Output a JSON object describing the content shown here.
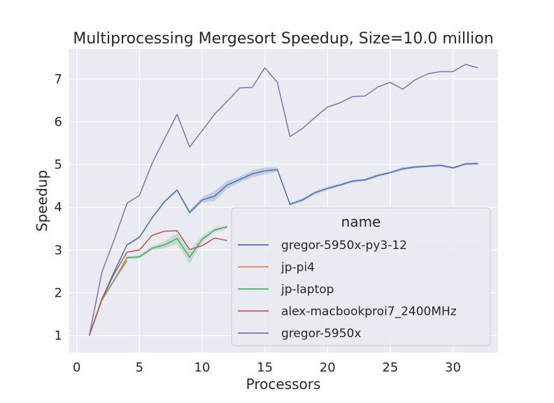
{
  "chart_data": {
    "type": "line",
    "title": "Multiprocessing Mergesort Speedup, Size=10.0 million",
    "xlabel": "Processors",
    "ylabel": "Speedup",
    "xlim": [
      -0.6,
      33.6
    ],
    "ylim": [
      0.6,
      7.7
    ],
    "xticks": [
      0,
      5,
      10,
      15,
      20,
      25,
      30
    ],
    "yticks": [
      1,
      2,
      3,
      4,
      5,
      6,
      7
    ],
    "grid": true,
    "legend": {
      "title": "name",
      "placement": "lower-right"
    },
    "series": [
      {
        "name": "gregor-5950x-py3-12",
        "color": "#4c72b0",
        "x": [
          1,
          2,
          3,
          4,
          5,
          6,
          7,
          8,
          9,
          10,
          11,
          12,
          13,
          14,
          15,
          16,
          17,
          18,
          19,
          20,
          21,
          22,
          23,
          24,
          25,
          26,
          27,
          28,
          29,
          30,
          31,
          32
        ],
        "y": [
          1.0,
          1.85,
          2.5,
          3.12,
          3.3,
          3.75,
          4.13,
          4.4,
          3.88,
          4.17,
          4.26,
          4.52,
          4.65,
          4.78,
          4.85,
          4.88,
          4.07,
          4.17,
          4.34,
          4.44,
          4.52,
          4.61,
          4.64,
          4.74,
          4.81,
          4.9,
          4.94,
          4.96,
          4.98,
          4.92,
          5.01,
          5.02
        ],
        "band": [
          0,
          0,
          0.02,
          0.02,
          0.03,
          0.03,
          0.03,
          0.03,
          0.05,
          0.06,
          0.12,
          0.09,
          0.07,
          0.08,
          0.08,
          0.05,
          0.03,
          0.04,
          0.04,
          0.04,
          0.03,
          0.03,
          0.03,
          0.04,
          0.03,
          0.04,
          0.03,
          0.03,
          0.03,
          0.03,
          0.03,
          0.04
        ]
      },
      {
        "name": "jp-pi4",
        "color": "#dd8452",
        "x": [
          1,
          2,
          3,
          4
        ],
        "y": [
          1.0,
          1.82,
          2.3,
          2.75
        ],
        "band": [
          0,
          0.02,
          0.03,
          0.05
        ]
      },
      {
        "name": "jp-laptop",
        "color": "#55a868",
        "x": [
          1,
          2,
          3,
          4,
          5,
          6,
          7,
          8,
          9,
          10,
          11,
          12
        ],
        "y": [
          1.0,
          1.85,
          2.3,
          2.82,
          2.84,
          3.04,
          3.12,
          3.27,
          2.83,
          3.25,
          3.47,
          3.54
        ],
        "band": [
          0,
          0.03,
          0.03,
          0.03,
          0.04,
          0.05,
          0.08,
          0.12,
          0.15,
          0.08,
          0.05,
          0.04
        ]
      },
      {
        "name": "alex-macbookproi7_2400MHz",
        "color": "#c44e52",
        "x": [
          1,
          2,
          3,
          4,
          5,
          6,
          7,
          8,
          9,
          10,
          11,
          12
        ],
        "y": [
          1.0,
          1.85,
          2.45,
          2.95,
          3.0,
          3.34,
          3.44,
          3.45,
          3.01,
          3.1,
          3.28,
          3.22
        ],
        "band": [
          0,
          0,
          0,
          0,
          0,
          0,
          0,
          0,
          0,
          0,
          0,
          0
        ]
      },
      {
        "name": "gregor-5950x",
        "color": "#8172b3",
        "x": [
          1,
          2,
          3,
          4,
          5,
          6,
          7,
          8,
          9,
          10,
          11,
          12,
          13,
          14,
          15,
          16,
          17,
          18,
          19,
          20,
          21,
          22,
          23,
          24,
          25,
          26,
          27,
          28,
          29,
          30,
          31,
          32
        ],
        "y": [
          1.0,
          2.48,
          3.25,
          4.09,
          4.28,
          5.02,
          5.6,
          6.17,
          5.41,
          5.79,
          6.18,
          6.48,
          6.79,
          6.8,
          7.26,
          6.92,
          5.65,
          5.84,
          6.1,
          6.34,
          6.44,
          6.59,
          6.6,
          6.81,
          6.92,
          6.76,
          6.98,
          7.12,
          7.17,
          7.17,
          7.34,
          7.26
        ],
        "band": [
          0,
          0,
          0,
          0,
          0,
          0,
          0,
          0,
          0,
          0,
          0,
          0,
          0,
          0,
          0,
          0,
          0,
          0,
          0,
          0,
          0,
          0,
          0,
          0,
          0,
          0,
          0,
          0,
          0,
          0,
          0,
          0
        ]
      }
    ]
  }
}
